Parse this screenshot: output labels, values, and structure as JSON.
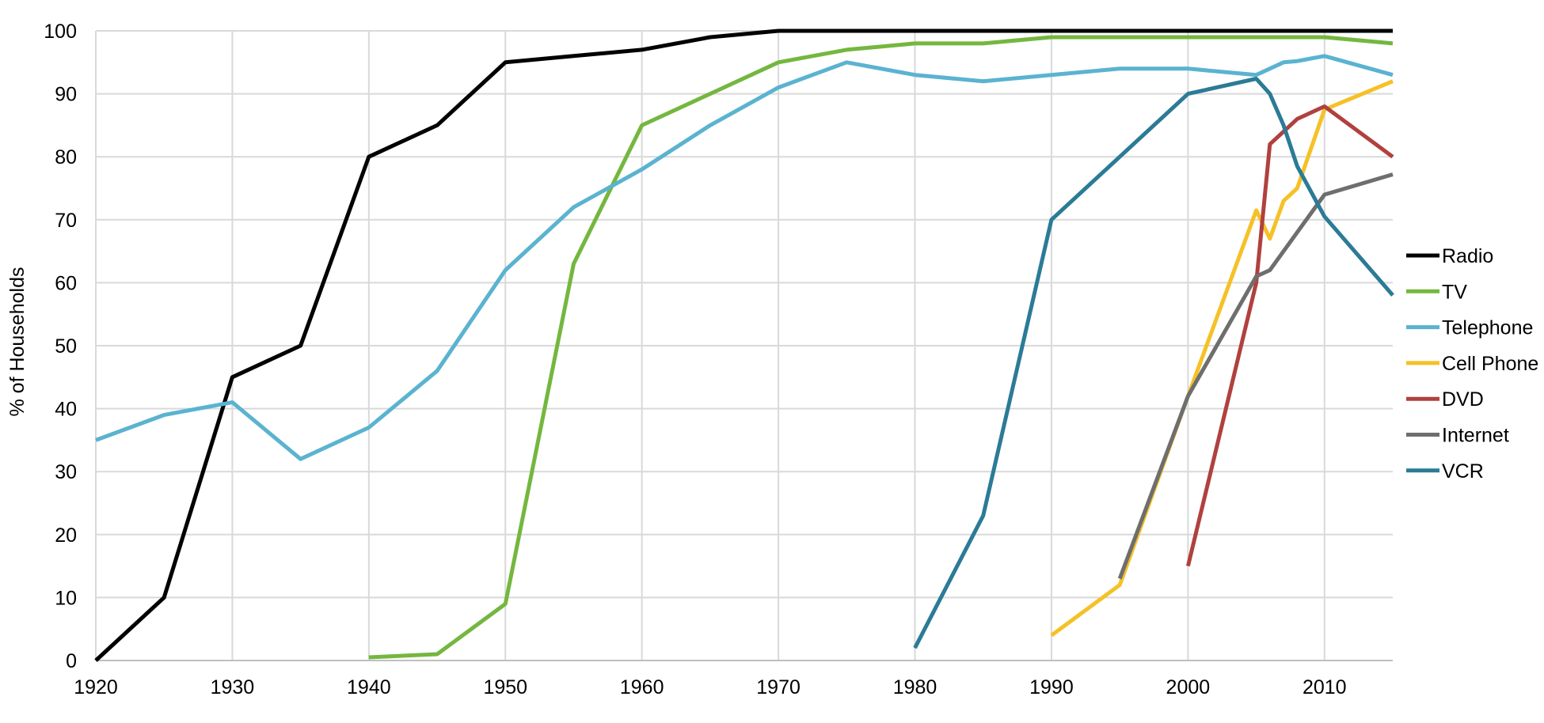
{
  "chart_data": {
    "type": "line",
    "ylabel": "% of Households",
    "xlabel": "",
    "xlim": [
      1920,
      2015
    ],
    "ylim": [
      0,
      100
    ],
    "x_ticks": [
      "1920",
      "1930",
      "1940",
      "1950",
      "1960",
      "1970",
      "1980",
      "1990",
      "2000",
      "2010"
    ],
    "y_ticks": [
      "0",
      "10",
      "20",
      "30",
      "40",
      "50",
      "60",
      "70",
      "80",
      "90",
      "100"
    ],
    "grid": true,
    "legend_position": "right",
    "series": [
      {
        "name": "Radio",
        "color": "#000000",
        "points": [
          [
            1920,
            0
          ],
          [
            1925,
            10
          ],
          [
            1930,
            45
          ],
          [
            1935,
            50
          ],
          [
            1940,
            80
          ],
          [
            1945,
            85
          ],
          [
            1950,
            95
          ],
          [
            1955,
            96
          ],
          [
            1960,
            97
          ],
          [
            1965,
            99
          ],
          [
            1970,
            100
          ],
          [
            2015,
            100
          ]
        ]
      },
      {
        "name": "TV",
        "color": "#74b73f",
        "points": [
          [
            1940,
            0.5
          ],
          [
            1945,
            1
          ],
          [
            1950,
            9
          ],
          [
            1955,
            63
          ],
          [
            1960,
            85
          ],
          [
            1965,
            90
          ],
          [
            1970,
            95
          ],
          [
            1975,
            97
          ],
          [
            1980,
            98
          ],
          [
            1985,
            98
          ],
          [
            1990,
            99
          ],
          [
            2000,
            99
          ],
          [
            2010,
            99
          ],
          [
            2015,
            98
          ]
        ]
      },
      {
        "name": "Telephone",
        "color": "#5ab3d0",
        "points": [
          [
            1920,
            35
          ],
          [
            1925,
            39
          ],
          [
            1930,
            41
          ],
          [
            1935,
            32
          ],
          [
            1940,
            37
          ],
          [
            1945,
            46
          ],
          [
            1950,
            62
          ],
          [
            1955,
            72
          ],
          [
            1960,
            78
          ],
          [
            1965,
            85
          ],
          [
            1970,
            91
          ],
          [
            1975,
            95
          ],
          [
            1980,
            93
          ],
          [
            1985,
            92
          ],
          [
            1990,
            93
          ],
          [
            1995,
            94
          ],
          [
            2000,
            94
          ],
          [
            2005,
            93
          ],
          [
            2007,
            95
          ],
          [
            2008,
            95.2
          ],
          [
            2010,
            96
          ],
          [
            2015,
            93
          ]
        ]
      },
      {
        "name": "Cell Phone",
        "color": "#f5c127",
        "points": [
          [
            1990,
            4
          ],
          [
            1995,
            12
          ],
          [
            2000,
            42
          ],
          [
            2005,
            71.5
          ],
          [
            2006,
            67
          ],
          [
            2007,
            73
          ],
          [
            2008,
            75
          ],
          [
            2010,
            87.5
          ],
          [
            2015,
            92
          ]
        ]
      },
      {
        "name": "DVD",
        "color": "#b0413e",
        "points": [
          [
            2000,
            15
          ],
          [
            2005,
            60
          ],
          [
            2006,
            82
          ],
          [
            2008,
            86
          ],
          [
            2010,
            88
          ],
          [
            2015,
            80
          ]
        ]
      },
      {
        "name": "Internet",
        "color": "#6e6e6e",
        "points": [
          [
            1995,
            13
          ],
          [
            2000,
            42
          ],
          [
            2005,
            61
          ],
          [
            2006,
            62
          ],
          [
            2010,
            74
          ],
          [
            2015,
            77.2
          ]
        ]
      },
      {
        "name": "VCR",
        "color": "#2b7b96",
        "points": [
          [
            1980,
            2
          ],
          [
            1985,
            23
          ],
          [
            1990,
            70
          ],
          [
            1995,
            80
          ],
          [
            2000,
            90
          ],
          [
            2005,
            92.4
          ],
          [
            2006,
            90
          ],
          [
            2007,
            85
          ],
          [
            2008,
            78.5
          ],
          [
            2010,
            70.5
          ],
          [
            2015,
            58
          ]
        ]
      }
    ]
  }
}
